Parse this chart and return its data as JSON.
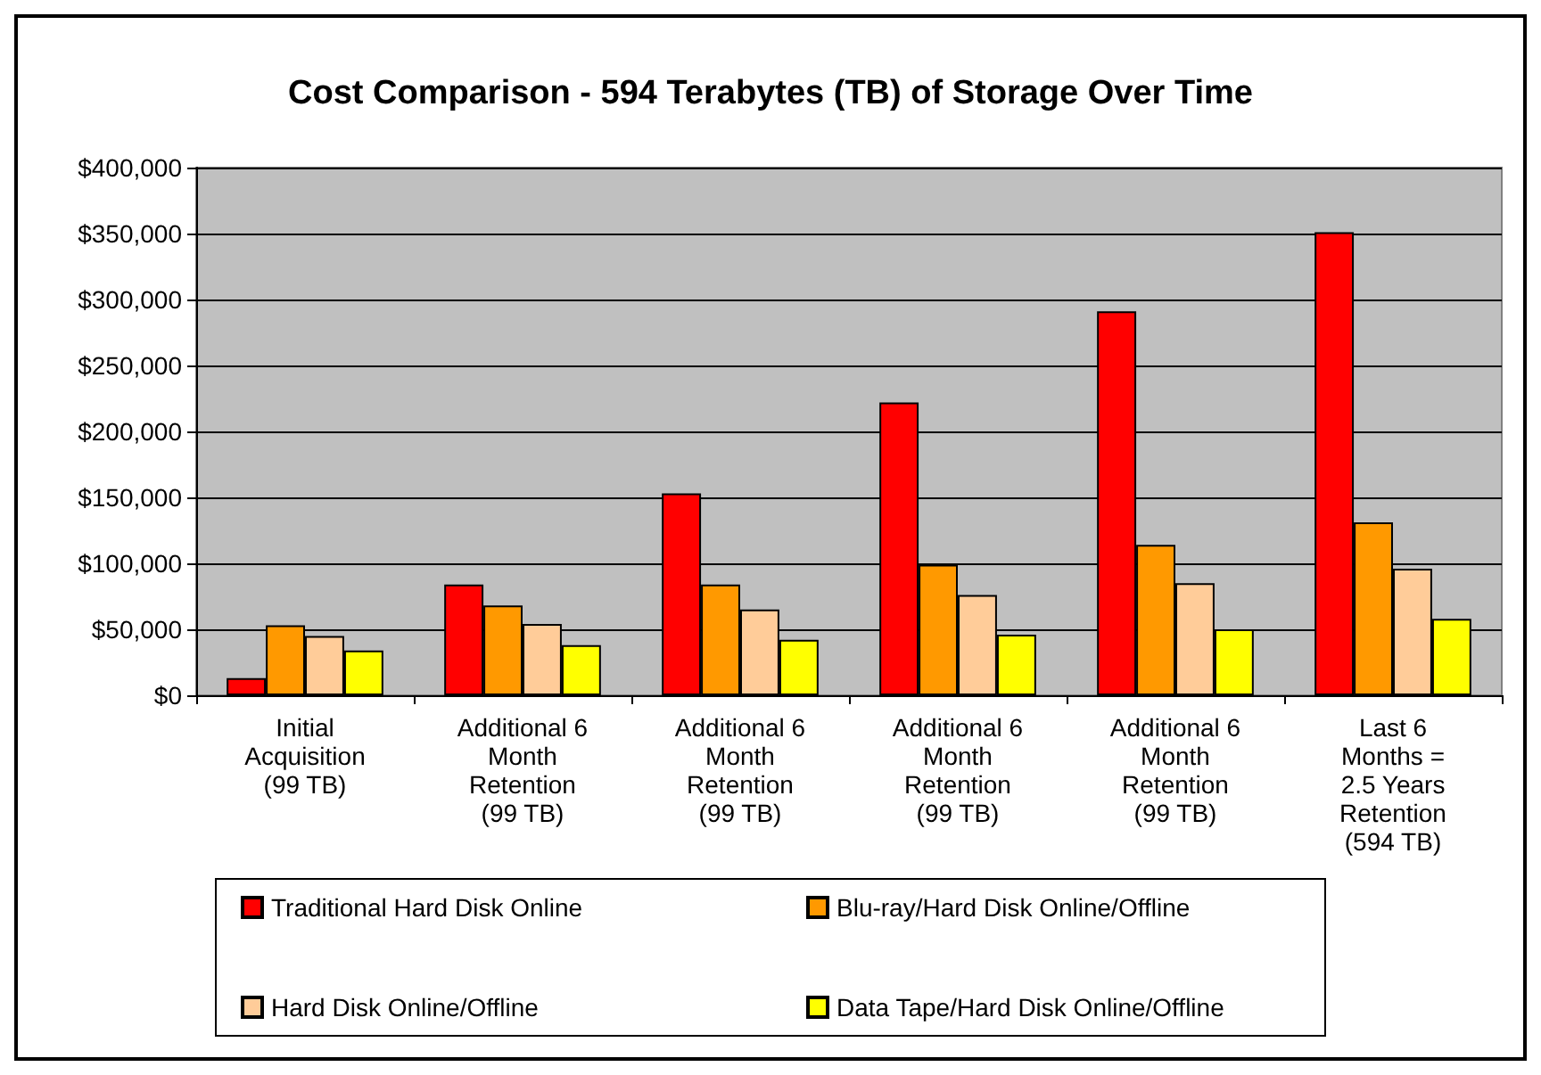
{
  "chart_data": {
    "type": "bar",
    "title": "Cost Comparison - 594 Terabytes (TB) of Storage Over Time",
    "categories": [
      "Initial\nAcquisition\n(99 TB)",
      "Additional 6\nMonth\nRetention\n(99 TB)",
      "Additional 6\nMonth\nRetention\n(99 TB)",
      "Additional 6\nMonth\nRetention\n(99 TB)",
      "Additional 6\nMonth\nRetention\n(99 TB)",
      "Last 6\nMonths =\n2.5 Years\nRetention\n(594 TB)"
    ],
    "series": [
      {
        "name": "Traditional Hard Disk Online",
        "color": "#ff0000",
        "values": [
          13000,
          84000,
          153000,
          222000,
          291000,
          351000
        ]
      },
      {
        "name": "Blu-ray/Hard Disk Online/Offline",
        "color": "#ff9900",
        "values": [
          53000,
          68000,
          84000,
          99000,
          114000,
          131000
        ]
      },
      {
        "name": "Hard Disk Online/Offline",
        "color": "#ffcc99",
        "values": [
          45000,
          54000,
          65000,
          76000,
          85000,
          96000
        ]
      },
      {
        "name": "Data Tape/Hard Disk Online/Offline",
        "color": "#ffff00",
        "values": [
          34000,
          38000,
          42000,
          46000,
          50000,
          58000
        ]
      }
    ],
    "ylim": [
      0,
      400000
    ],
    "yticks": [
      {
        "value": 0,
        "label": "$0"
      },
      {
        "value": 50000,
        "label": "$50,000"
      },
      {
        "value": 100000,
        "label": "$100,000"
      },
      {
        "value": 150000,
        "label": "$150,000"
      },
      {
        "value": 200000,
        "label": "$200,000"
      },
      {
        "value": 250000,
        "label": "$250,000"
      },
      {
        "value": 300000,
        "label": "$300,000"
      },
      {
        "value": 350000,
        "label": "$350,000"
      },
      {
        "value": 400000,
        "label": "$400,000"
      }
    ],
    "grid": "y",
    "legend": "bottom"
  }
}
